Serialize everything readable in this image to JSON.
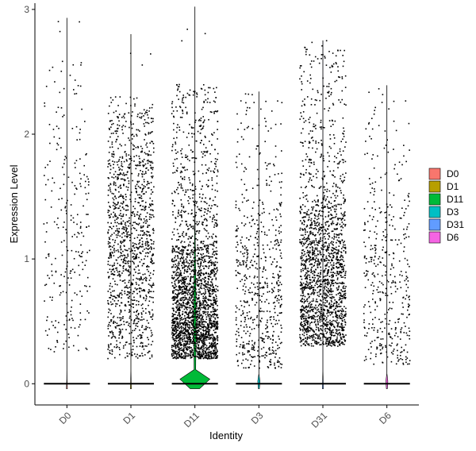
{
  "chart_data": {
    "type": "violin",
    "xlabel": "Identity",
    "ylabel": "Expression Level",
    "categories": [
      "D0",
      "D1",
      "D11",
      "D3",
      "D31",
      "D6"
    ],
    "ylim": [
      -0.17,
      3.05
    ],
    "yticks": [
      0,
      1,
      2,
      3
    ],
    "grid": false,
    "legend": {
      "position": "right",
      "entries": [
        "D0",
        "D1",
        "D11",
        "D3",
        "D31",
        "D6"
      ]
    },
    "colors": {
      "D0": "#F8766D",
      "D1": "#B79F00",
      "D11": "#00BA38",
      "D3": "#00BFC4",
      "D31": "#619CFF",
      "D6": "#F564E3"
    },
    "series": [
      {
        "name": "D0",
        "max": 2.93,
        "violin_max_width": 0.05,
        "points": 260,
        "pos_range": [
          0.25,
          2.6
        ],
        "pos_center": 1.1,
        "pos_spread": 0.65
      },
      {
        "name": "D1",
        "max": 2.8,
        "violin_max_width": 0.05,
        "points": 1300,
        "pos_range": [
          0.2,
          2.3
        ],
        "pos_center": 1.1,
        "pos_spread": 0.55
      },
      {
        "name": "D11",
        "max": 3.02,
        "violin_max_width": 0.48,
        "points": 2600,
        "pos_range": [
          0.2,
          2.4
        ],
        "pos_center": 0.55,
        "pos_spread": 0.4
      },
      {
        "name": "D3",
        "max": 2.34,
        "violin_max_width": 0.05,
        "points": 620,
        "pos_range": [
          0.12,
          2.3
        ],
        "pos_center": 0.7,
        "pos_spread": 0.5
      },
      {
        "name": "D31",
        "max": 2.75,
        "violin_max_width": 0.05,
        "points": 1900,
        "pos_range": [
          0.3,
          2.7
        ],
        "pos_center": 0.8,
        "pos_spread": 0.45
      },
      {
        "name": "D6",
        "max": 2.39,
        "violin_max_width": 0.05,
        "points": 420,
        "pos_range": [
          0.15,
          2.3
        ],
        "pos_center": 0.7,
        "pos_spread": 0.55
      }
    ]
  }
}
